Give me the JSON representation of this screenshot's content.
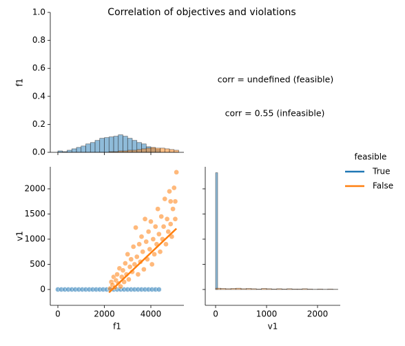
{
  "title": "Correlation of objectives and violations",
  "chart_data": [
    {
      "type": "histogram",
      "ylabel": "f1",
      "xlim": [
        -326,
        5422
      ],
      "ylim": [
        0,
        1
      ],
      "yticks": [
        {
          "value": 0,
          "label": "0.0"
        },
        {
          "value": 0.2,
          "label": "0.2"
        },
        {
          "value": 0.4,
          "label": "0.4"
        },
        {
          "value": 0.6,
          "label": "0.6"
        },
        {
          "value": 0.8,
          "label": "0.8"
        },
        {
          "value": 1,
          "label": "1.0"
        }
      ],
      "bins": [
        0,
        200,
        400,
        600,
        800,
        1000,
        1200,
        1400,
        1600,
        1800,
        2000,
        2200,
        2400,
        2600,
        2800,
        3000,
        3200,
        3400,
        3600,
        3800,
        4000,
        4200,
        4400,
        4600,
        4800,
        5000,
        5200
      ],
      "series": [
        {
          "color": "#1f77b4",
          "values": [
            0.01,
            0.005,
            0.015,
            0.025,
            0.035,
            0.045,
            0.06,
            0.07,
            0.085,
            0.1,
            0.105,
            0.11,
            0.115,
            0.125,
            0.115,
            0.1,
            0.085,
            0.07,
            0.06,
            0.04,
            0.03,
            0.02,
            0,
            0,
            0,
            0
          ]
        },
        {
          "color": "#ff7f0e",
          "values": [
            0,
            0,
            0,
            0,
            0,
            0,
            0,
            0,
            0,
            0,
            0,
            0.005,
            0.005,
            0.01,
            0.01,
            0.015,
            0.015,
            0.02,
            0.025,
            0.03,
            0.035,
            0.03,
            0.03,
            0.025,
            0.02,
            0.015
          ]
        }
      ]
    },
    {
      "type": "scatter",
      "xlabel": "f1",
      "ylabel": "v1",
      "xlim": [
        -326,
        5422
      ],
      "ylim": [
        -315,
        2438
      ],
      "xticks": [
        0,
        2000,
        4000
      ],
      "yticks": [
        0,
        500,
        1000,
        1500,
        2000
      ],
      "series": [
        {
          "name": "True",
          "color": "#1f77b4",
          "x": [
            0,
            150,
            300,
            450,
            600,
            750,
            900,
            1050,
            1200,
            1350,
            1500,
            1650,
            1800,
            1950,
            2100,
            2250,
            2400,
            2550,
            2700,
            2850,
            3000,
            3150,
            3300,
            3450,
            3600,
            3750,
            3900,
            4050,
            4200,
            4350
          ],
          "y": [
            0,
            0,
            0,
            0,
            0,
            0,
            0,
            0,
            0,
            0,
            0,
            0,
            0,
            0,
            0,
            0,
            0,
            0,
            0,
            0,
            0,
            0,
            0,
            0,
            0,
            0,
            0,
            0,
            0,
            0
          ]
        },
        {
          "name": "False",
          "color": "#ff7f0e",
          "x": [
            2250,
            2300,
            2350,
            2400,
            2450,
            2500,
            2550,
            2600,
            2650,
            2700,
            2750,
            2800,
            2850,
            2900,
            2950,
            3000,
            3050,
            3100,
            3150,
            3200,
            3250,
            3300,
            3350,
            3400,
            3450,
            3500,
            3550,
            3600,
            3650,
            3700,
            3750,
            3800,
            3850,
            3900,
            3950,
            4000,
            4050,
            4100,
            4150,
            4200,
            4250,
            4300,
            4350,
            4400,
            4450,
            4500,
            4550,
            4600,
            4650,
            4700,
            4750,
            4800,
            4850,
            4900,
            4950,
            5000,
            5050,
            5100,
            5050,
            4850
          ],
          "y": [
            20,
            150,
            90,
            250,
            40,
            180,
            300,
            120,
            420,
            60,
            250,
            380,
            150,
            520,
            300,
            700,
            200,
            450,
            600,
            350,
            850,
            500,
            1230,
            650,
            300,
            900,
            550,
            1050,
            750,
            400,
            1400,
            950,
            600,
            1150,
            800,
            1350,
            500,
            1000,
            700,
            1250,
            900,
            1600,
            1100,
            750,
            1450,
            1000,
            1250,
            1800,
            900,
            1400,
            1150,
            1950,
            1300,
            1050,
            1600,
            2020,
            1400,
            2330,
            1750,
            1750
          ]
        }
      ],
      "fits": [
        {
          "color": "#ff7f0e",
          "x": [
            2200,
            5100
          ],
          "y": [
            -60,
            1210
          ]
        }
      ]
    },
    {
      "type": "histogram",
      "xlabel": "v1",
      "xlim": [
        -203,
        2446
      ],
      "ylim": [
        -315,
        2438
      ],
      "xticks": [
        0,
        1000,
        2000
      ],
      "series": [
        {
          "color": "#1f77b4",
          "bins": [
            0,
            40
          ],
          "values": [
            2320
          ]
        },
        {
          "color": "#ff7f0e",
          "bins": [
            0,
            100,
            200,
            300,
            400,
            500,
            600,
            700,
            800,
            900,
            1000,
            1100,
            1200,
            1300,
            1400,
            1500,
            1600,
            1700,
            1800,
            1900,
            2000,
            2100,
            2200,
            2300,
            2400
          ],
          "values": [
            25,
            20,
            15,
            20,
            25,
            15,
            20,
            15,
            10,
            20,
            15,
            10,
            15,
            10,
            15,
            10,
            10,
            15,
            10,
            5,
            10,
            5,
            10,
            5
          ]
        }
      ]
    }
  ],
  "annotations": [
    {
      "text": "corr = undefined (feasible)",
      "color": "#1f77b4"
    },
    {
      "text": "corr = 0.55 (infeasible)",
      "color": "#ff7f0e"
    }
  ],
  "legend": {
    "title": "feasible",
    "location": "right"
  }
}
